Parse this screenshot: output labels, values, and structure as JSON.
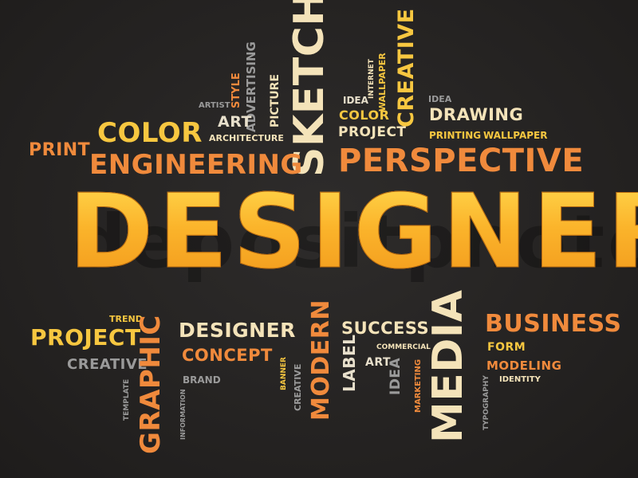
{
  "main_word": "DESIGNER",
  "watermark": "depositphotos",
  "colors": {
    "orange": "#f08a3c",
    "gold": "#f7c740",
    "cream": "#f4e3b9",
    "gray": "#9a9a9a",
    "light": "#e8e0cc"
  },
  "words": [
    {
      "id": "sketch",
      "text": "SKETCH"
    },
    {
      "id": "creative_top",
      "text": "CREATIVE"
    },
    {
      "id": "advertising",
      "text": "ADVERTISING"
    },
    {
      "id": "style",
      "text": "STYLE"
    },
    {
      "id": "picture",
      "text": "PICTURE"
    },
    {
      "id": "internet",
      "text": "INTERNET"
    },
    {
      "id": "wallpaper_v",
      "text": "WALLPAPER"
    },
    {
      "id": "idea_top",
      "text": "IDEA"
    },
    {
      "id": "idea_right",
      "text": "IDEA"
    },
    {
      "id": "artist",
      "text": "ARTIST"
    },
    {
      "id": "art_top",
      "text": "ART"
    },
    {
      "id": "color_big",
      "text": "COLOR"
    },
    {
      "id": "architecture",
      "text": "ARCHITECTURE"
    },
    {
      "id": "color_small",
      "text": "COLOR"
    },
    {
      "id": "project_top",
      "text": "PROJECT"
    },
    {
      "id": "drawing",
      "text": "DRAWING"
    },
    {
      "id": "printing",
      "text": "PRINTING"
    },
    {
      "id": "wallpaper_h",
      "text": "WALLPAPER"
    },
    {
      "id": "print",
      "text": "PRINT"
    },
    {
      "id": "engineering",
      "text": "ENGINEERING"
    },
    {
      "id": "perspective",
      "text": "PERSPECTIVE"
    },
    {
      "id": "trend",
      "text": "TREND"
    },
    {
      "id": "project_bottom",
      "text": "PROJECT"
    },
    {
      "id": "creative_bottom",
      "text": "CREATIVE"
    },
    {
      "id": "template",
      "text": "TEMPLATE"
    },
    {
      "id": "graphic",
      "text": "GRAPHIC"
    },
    {
      "id": "designer_small",
      "text": "DESIGNER"
    },
    {
      "id": "concept",
      "text": "CONCEPT"
    },
    {
      "id": "brand",
      "text": "BRAND"
    },
    {
      "id": "information",
      "text": "INFORMATION"
    },
    {
      "id": "banner",
      "text": "BANNER"
    },
    {
      "id": "creative_v",
      "text": "CREATIVE"
    },
    {
      "id": "modern",
      "text": "MODERN"
    },
    {
      "id": "success",
      "text": "SUCCESS"
    },
    {
      "id": "label",
      "text": "LABEL"
    },
    {
      "id": "commercial",
      "text": "COMMERCIAL"
    },
    {
      "id": "art_bottom",
      "text": "ART"
    },
    {
      "id": "idea_bottom",
      "text": "IDEA"
    },
    {
      "id": "marketing",
      "text": "MARKETING"
    },
    {
      "id": "media",
      "text": "MEDIA"
    },
    {
      "id": "business",
      "text": "BUSINESS"
    },
    {
      "id": "form",
      "text": "FORM"
    },
    {
      "id": "modeling",
      "text": "MODELING"
    },
    {
      "id": "typography",
      "text": "TYPOGRAPHY"
    },
    {
      "id": "identity",
      "text": "IDENTITY"
    }
  ]
}
